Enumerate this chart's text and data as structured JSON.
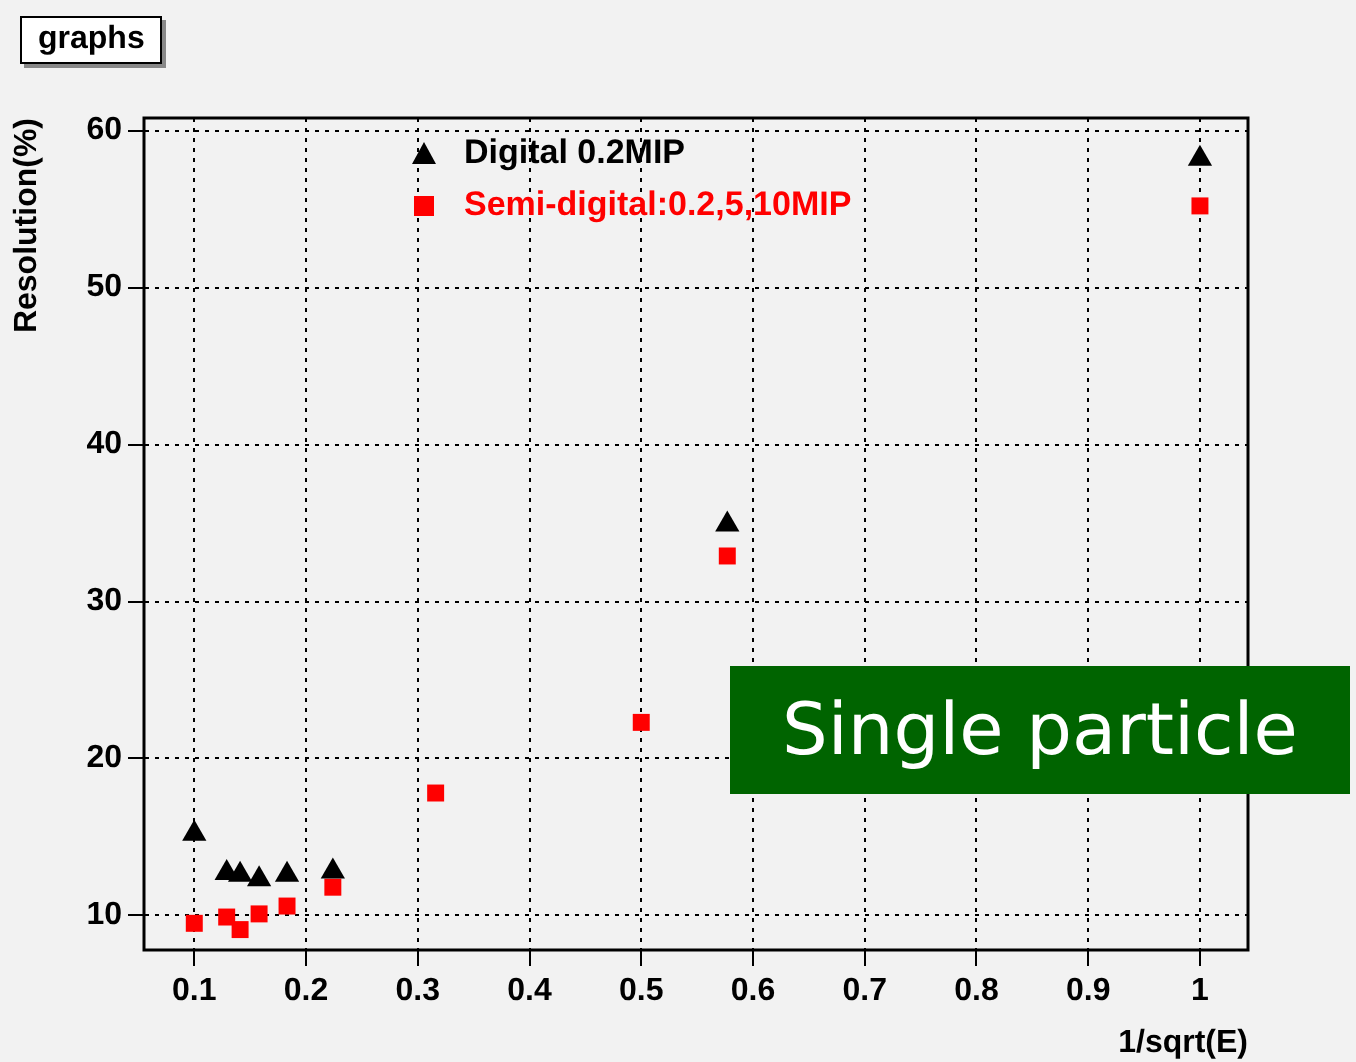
{
  "chart_data": {
    "type": "scatter",
    "title": "graphs",
    "xlabel": "1/sqrt(E)",
    "ylabel": "Resolution(%)",
    "xlim": [
      0.055,
      1.043
    ],
    "ylim": [
      7.8,
      60.8
    ],
    "xticks": [
      0.1,
      0.2,
      0.3,
      0.4,
      0.5,
      0.6,
      0.7,
      0.8,
      0.9,
      1
    ],
    "yticks": [
      10,
      20,
      30,
      40,
      50,
      60
    ],
    "grid": true,
    "legend": "top left",
    "series": [
      {
        "name": "Digital 0.2MIP",
        "color": "#000000",
        "marker": "triangle",
        "x": [
          0.1,
          0.129,
          0.141,
          0.158,
          0.183,
          0.224,
          0.577,
          1
        ],
        "values": [
          15.2,
          12.7,
          12.6,
          12.3,
          12.6,
          12.8,
          34.9,
          58.2
        ]
      },
      {
        "name": "Semi-digital:0.2,5,10MIP",
        "color": "#ff0000",
        "marker": "square",
        "x": [
          0.1,
          0.129,
          0.141,
          0.158,
          0.183,
          0.224,
          0.316,
          0.5,
          0.577,
          1
        ],
        "values": [
          9.5,
          9.9,
          9.1,
          10.1,
          10.6,
          11.8,
          17.8,
          22.3,
          32.9,
          55.2
        ]
      }
    ],
    "annotations": [
      "Single particle"
    ]
  }
}
